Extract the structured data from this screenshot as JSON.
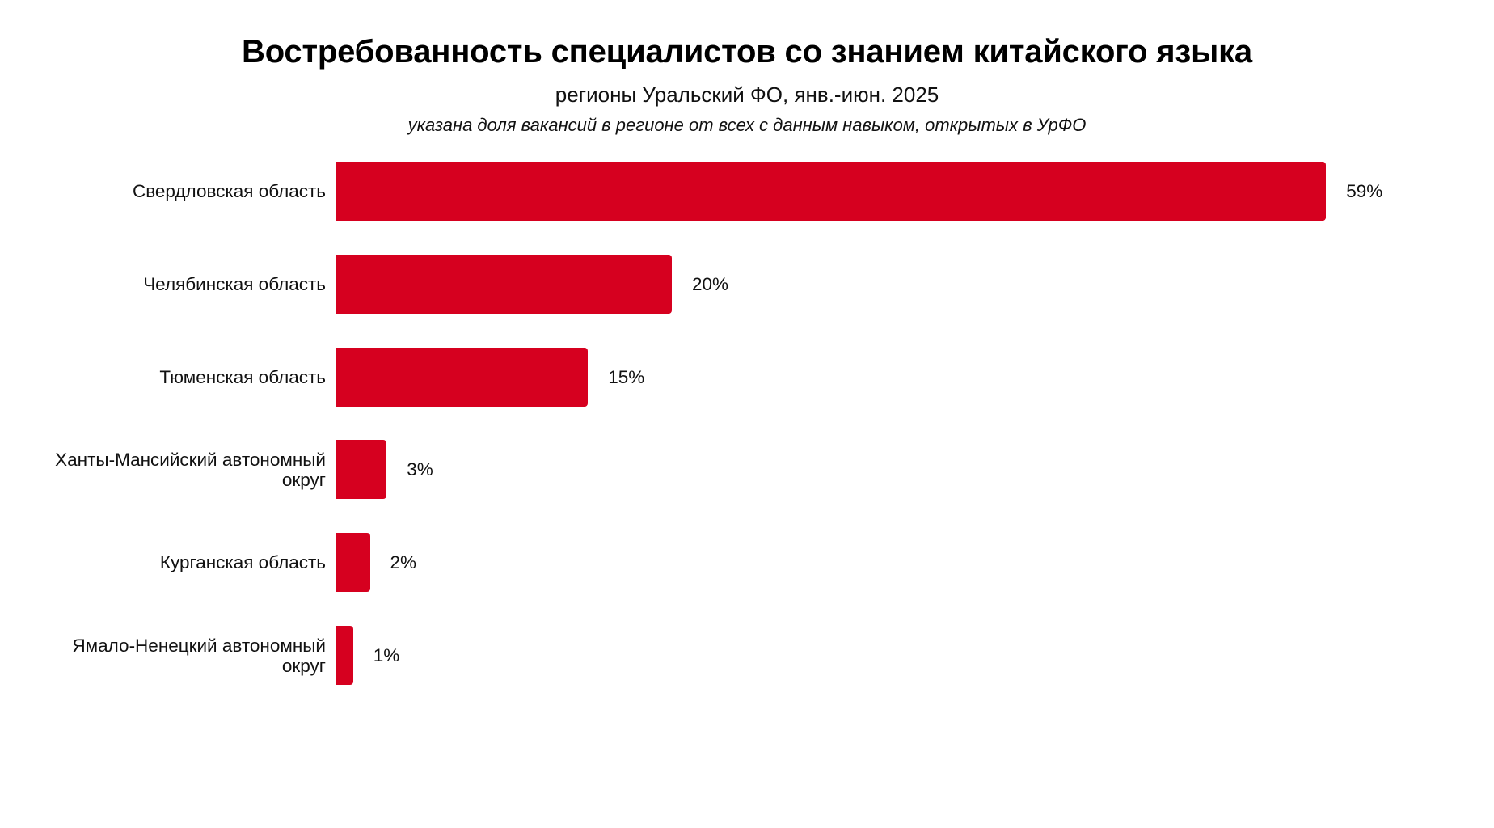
{
  "header": {
    "title": "Востребованность специалистов со знанием китайского языка",
    "subtitle": "регионы Уральский ФО, янв.-июн. 2025",
    "note": "указана доля вакансий в регионе от всех с данным навыком, открытых в УрФО"
  },
  "colors": {
    "bar": "#D6001F",
    "text": "#111111",
    "background": "#FFFFFF"
  },
  "chart_data": {
    "type": "bar",
    "orientation": "horizontal",
    "title": "Востребованность специалистов со знанием китайского языка",
    "subtitle": "регионы Уральский ФО, янв.-июн. 2025",
    "annotation": "указана доля вакансий в регионе от всех с данным навыком, открытых в УрФО",
    "categories": [
      "Свердловская область",
      "Челябинская область",
      "Тюменская область",
      "Ханты-Мансийский автономный округ",
      "Курганская область",
      "Ямало-Ненецкий автономный округ"
    ],
    "values": [
      59,
      20,
      15,
      3,
      2,
      1
    ],
    "value_labels": [
      "59%",
      "20%",
      "15%",
      "3%",
      "2%",
      "1%"
    ],
    "unit": "%",
    "xlabel": "",
    "ylabel": "",
    "xlim": [
      0,
      59
    ],
    "grid": false,
    "legend": "none",
    "series": [
      {
        "name": "Доля вакансий",
        "color": "#D6001F",
        "values": [
          59,
          20,
          15,
          3,
          2,
          1
        ]
      }
    ]
  },
  "rows": [
    {
      "label": "Свердловская область",
      "value": 59,
      "value_label": "59%"
    },
    {
      "label": "Челябинская область",
      "value": 20,
      "value_label": "20%"
    },
    {
      "label": "Тюменская область",
      "value": 15,
      "value_label": "15%"
    },
    {
      "label": "Ханты-Мансийский автономный\nокруг",
      "value": 3,
      "value_label": "3%"
    },
    {
      "label": "Курганская область",
      "value": 2,
      "value_label": "2%"
    },
    {
      "label": "Ямало-Ненецкий автономный\nокруг",
      "value": 1,
      "value_label": "1%"
    }
  ]
}
